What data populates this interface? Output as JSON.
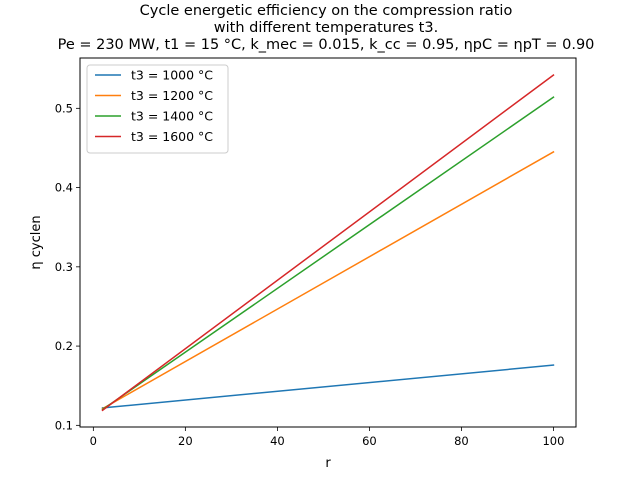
{
  "chart_data": {
    "type": "line",
    "title_lines": [
      "Cycle energetic efficiency on the compression ratio",
      "with different temperatures t3.",
      "Pe = 230 MW, t1 = 15 °C, k_mec = 0.015, k_cc = 0.95, ηpC = ηpT = 0.90"
    ],
    "xlabel": "r",
    "ylabel": "η cyclen",
    "xlim": [
      -2.9,
      104.9
    ],
    "ylim": [
      0.0979,
      0.5635
    ],
    "x_ticks": [
      0,
      20,
      40,
      60,
      80,
      100
    ],
    "x_tick_labels": [
      "0",
      "20",
      "40",
      "60",
      "80",
      "100"
    ],
    "y_ticks": [
      0.1,
      0.2,
      0.3,
      0.4,
      0.5
    ],
    "y_tick_labels": [
      "0.1",
      "0.2",
      "0.3",
      "0.4",
      "0.5"
    ],
    "grid": false,
    "legend_position": "top-left",
    "x": [
      2,
      100
    ],
    "series": [
      {
        "name": "t3 = 1000 °C",
        "color": "#1f77b4",
        "values": [
          0.122,
          0.176
        ]
      },
      {
        "name": "t3 = 1200 °C",
        "color": "#ff7f0e",
        "values": [
          0.121,
          0.445
        ]
      },
      {
        "name": "t3 = 1400 °C",
        "color": "#2ca02c",
        "values": [
          0.12,
          0.514
        ]
      },
      {
        "name": "t3 = 1600 °C",
        "color": "#d62728",
        "values": [
          0.119,
          0.542
        ]
      }
    ]
  }
}
